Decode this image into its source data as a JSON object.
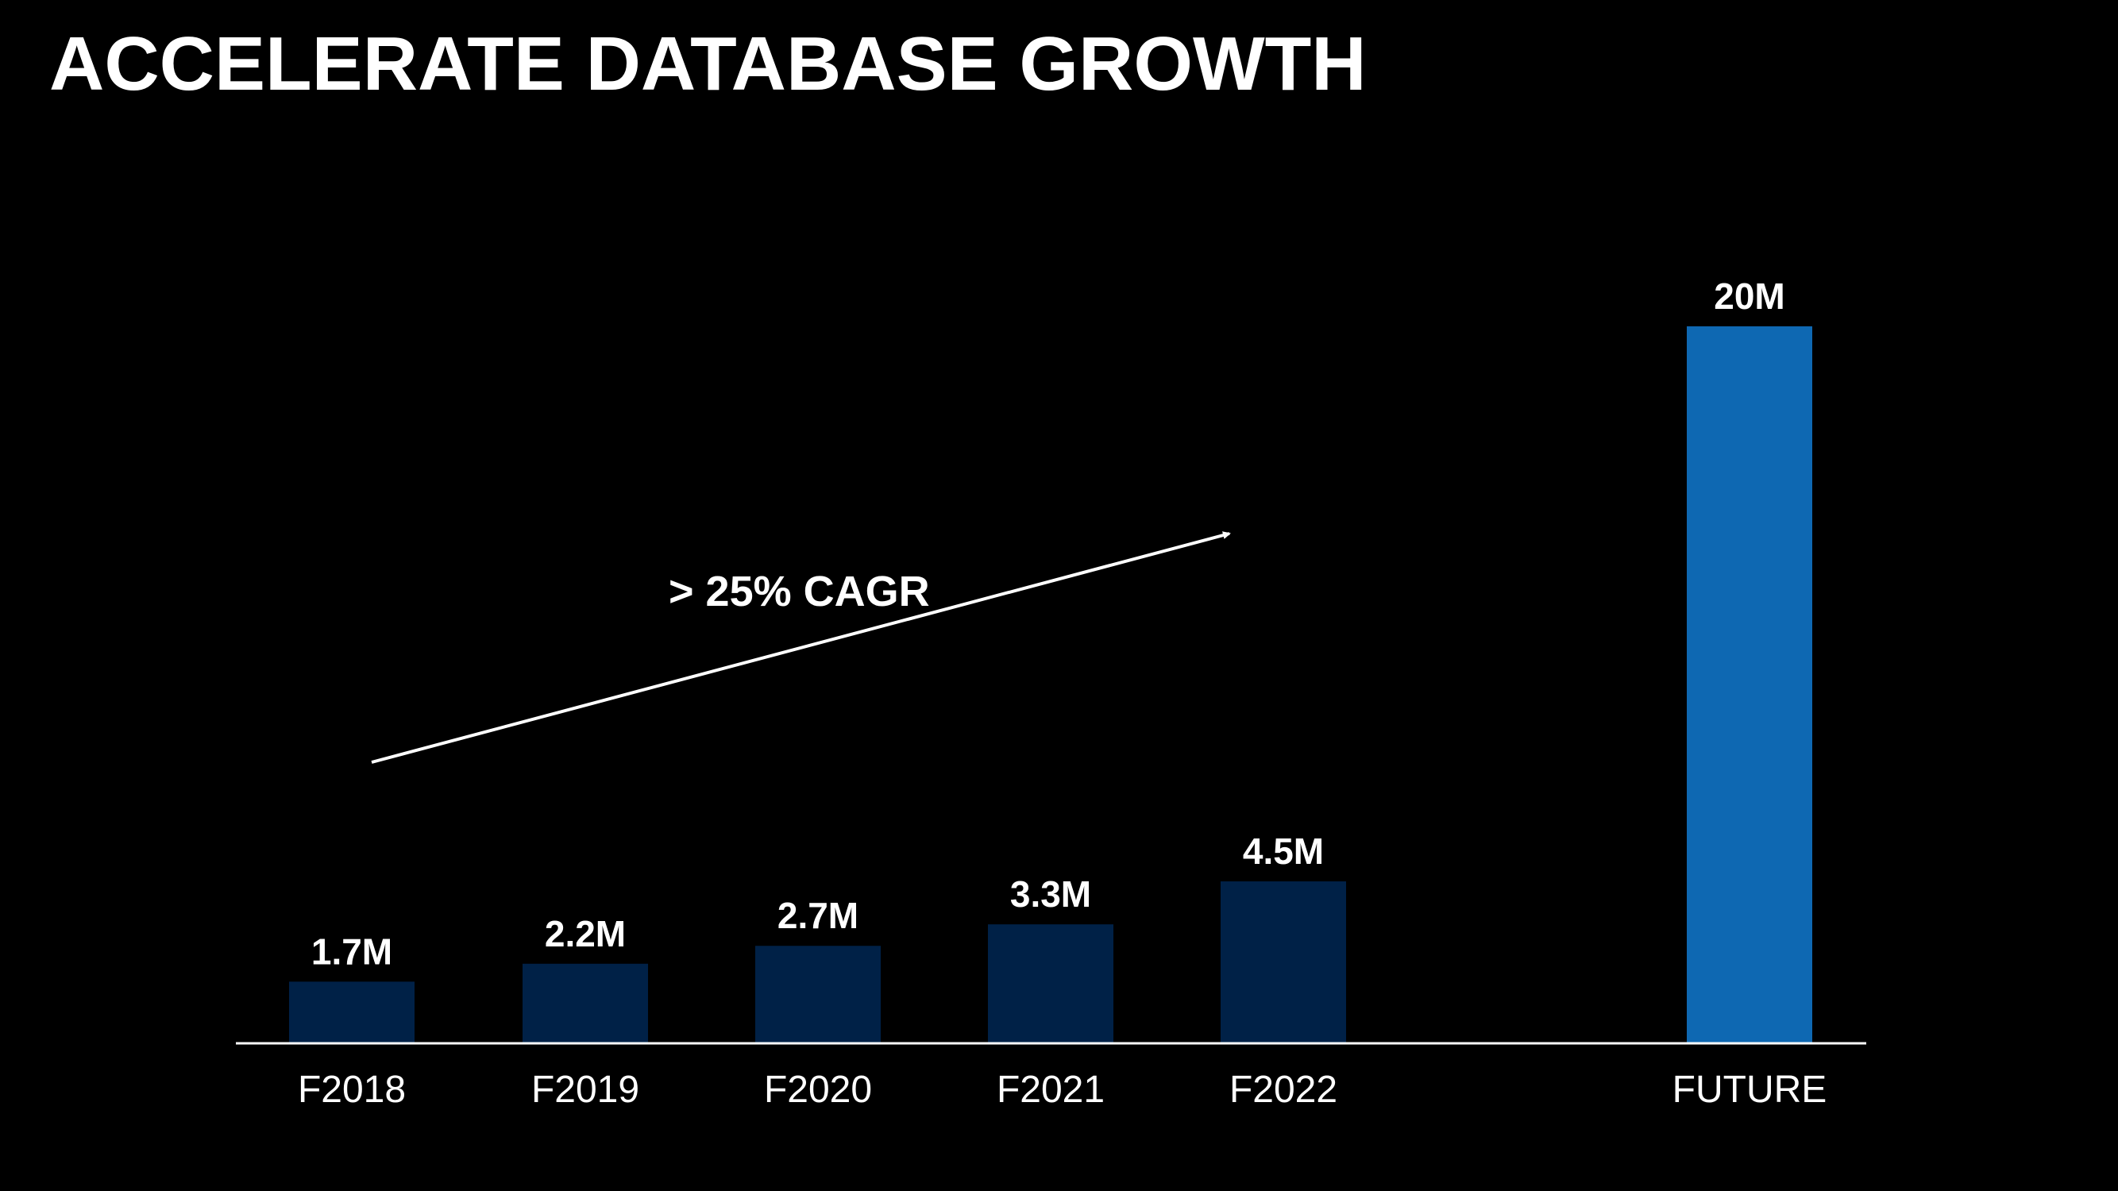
{
  "slide": {
    "title": "ACCELERATE DATABASE GROWTH"
  },
  "colors": {
    "background": "#000000",
    "historical_bar": "#002147",
    "future_bar": "#0e68b2",
    "text": "#ffffff",
    "axis": "#ffffff"
  },
  "chart_data": {
    "type": "bar",
    "title": "ACCELERATE DATABASE GROWTH",
    "xlabel": "",
    "ylabel": "",
    "ylim": [
      0,
      20
    ],
    "grid": false,
    "legend": "none",
    "categories": [
      "F2018",
      "F2019",
      "F2020",
      "F2021",
      "F2022",
      "FUTURE"
    ],
    "values": [
      1.7,
      2.2,
      2.7,
      3.3,
      4.5,
      20
    ],
    "value_labels": [
      "1.7M",
      "2.2M",
      "2.7M",
      "3.3M",
      "4.5M",
      "20M"
    ],
    "bar_colors": [
      "#002147",
      "#002147",
      "#002147",
      "#002147",
      "#002147",
      "#0e68b2"
    ],
    "annotations": [
      {
        "text": "> 25% CAGR",
        "type": "trend-arrow",
        "from_category": "F2018",
        "to_category": "F2022"
      }
    ]
  }
}
